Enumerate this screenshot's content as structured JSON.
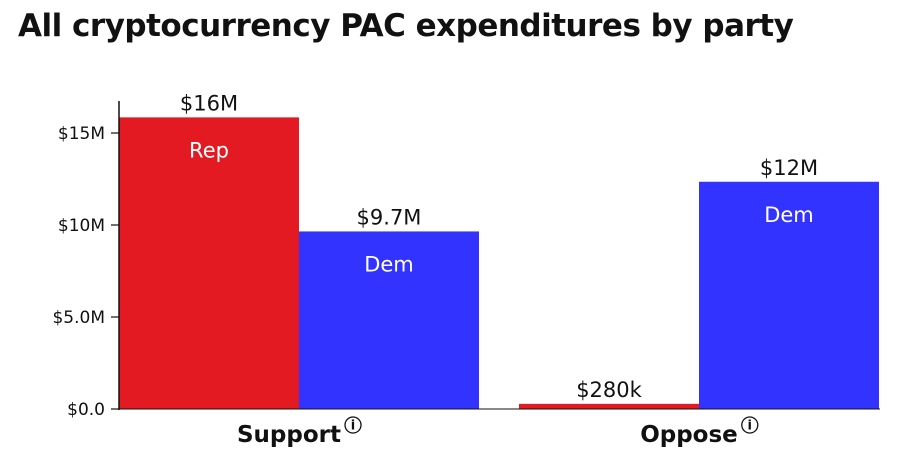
{
  "title": "All cryptocurrency PAC expenditures by party",
  "colors": {
    "rep": "#e41a23",
    "dem": "#3333ff",
    "axis": "#111111"
  },
  "chart_data": {
    "type": "bar",
    "title": "All cryptocurrency PAC expenditures by party",
    "categories": [
      "Support",
      "Oppose"
    ],
    "info_icon": "info-icon",
    "series": [
      {
        "name": "Rep",
        "values": [
          15850000,
          280000
        ],
        "labels": [
          "$16M",
          "$280k"
        ]
      },
      {
        "name": "Dem",
        "values": [
          9650000,
          12350000
        ],
        "labels": [
          "$9.7M",
          "$12M"
        ]
      }
    ],
    "yticks": [
      {
        "value": 0,
        "label": "$0.0"
      },
      {
        "value": 5000000,
        "label": "$5.0M"
      },
      {
        "value": 10000000,
        "label": "$10M"
      },
      {
        "value": 15000000,
        "label": "$15M"
      }
    ],
    "ylim": [
      0,
      16300000
    ],
    "grid": false
  }
}
